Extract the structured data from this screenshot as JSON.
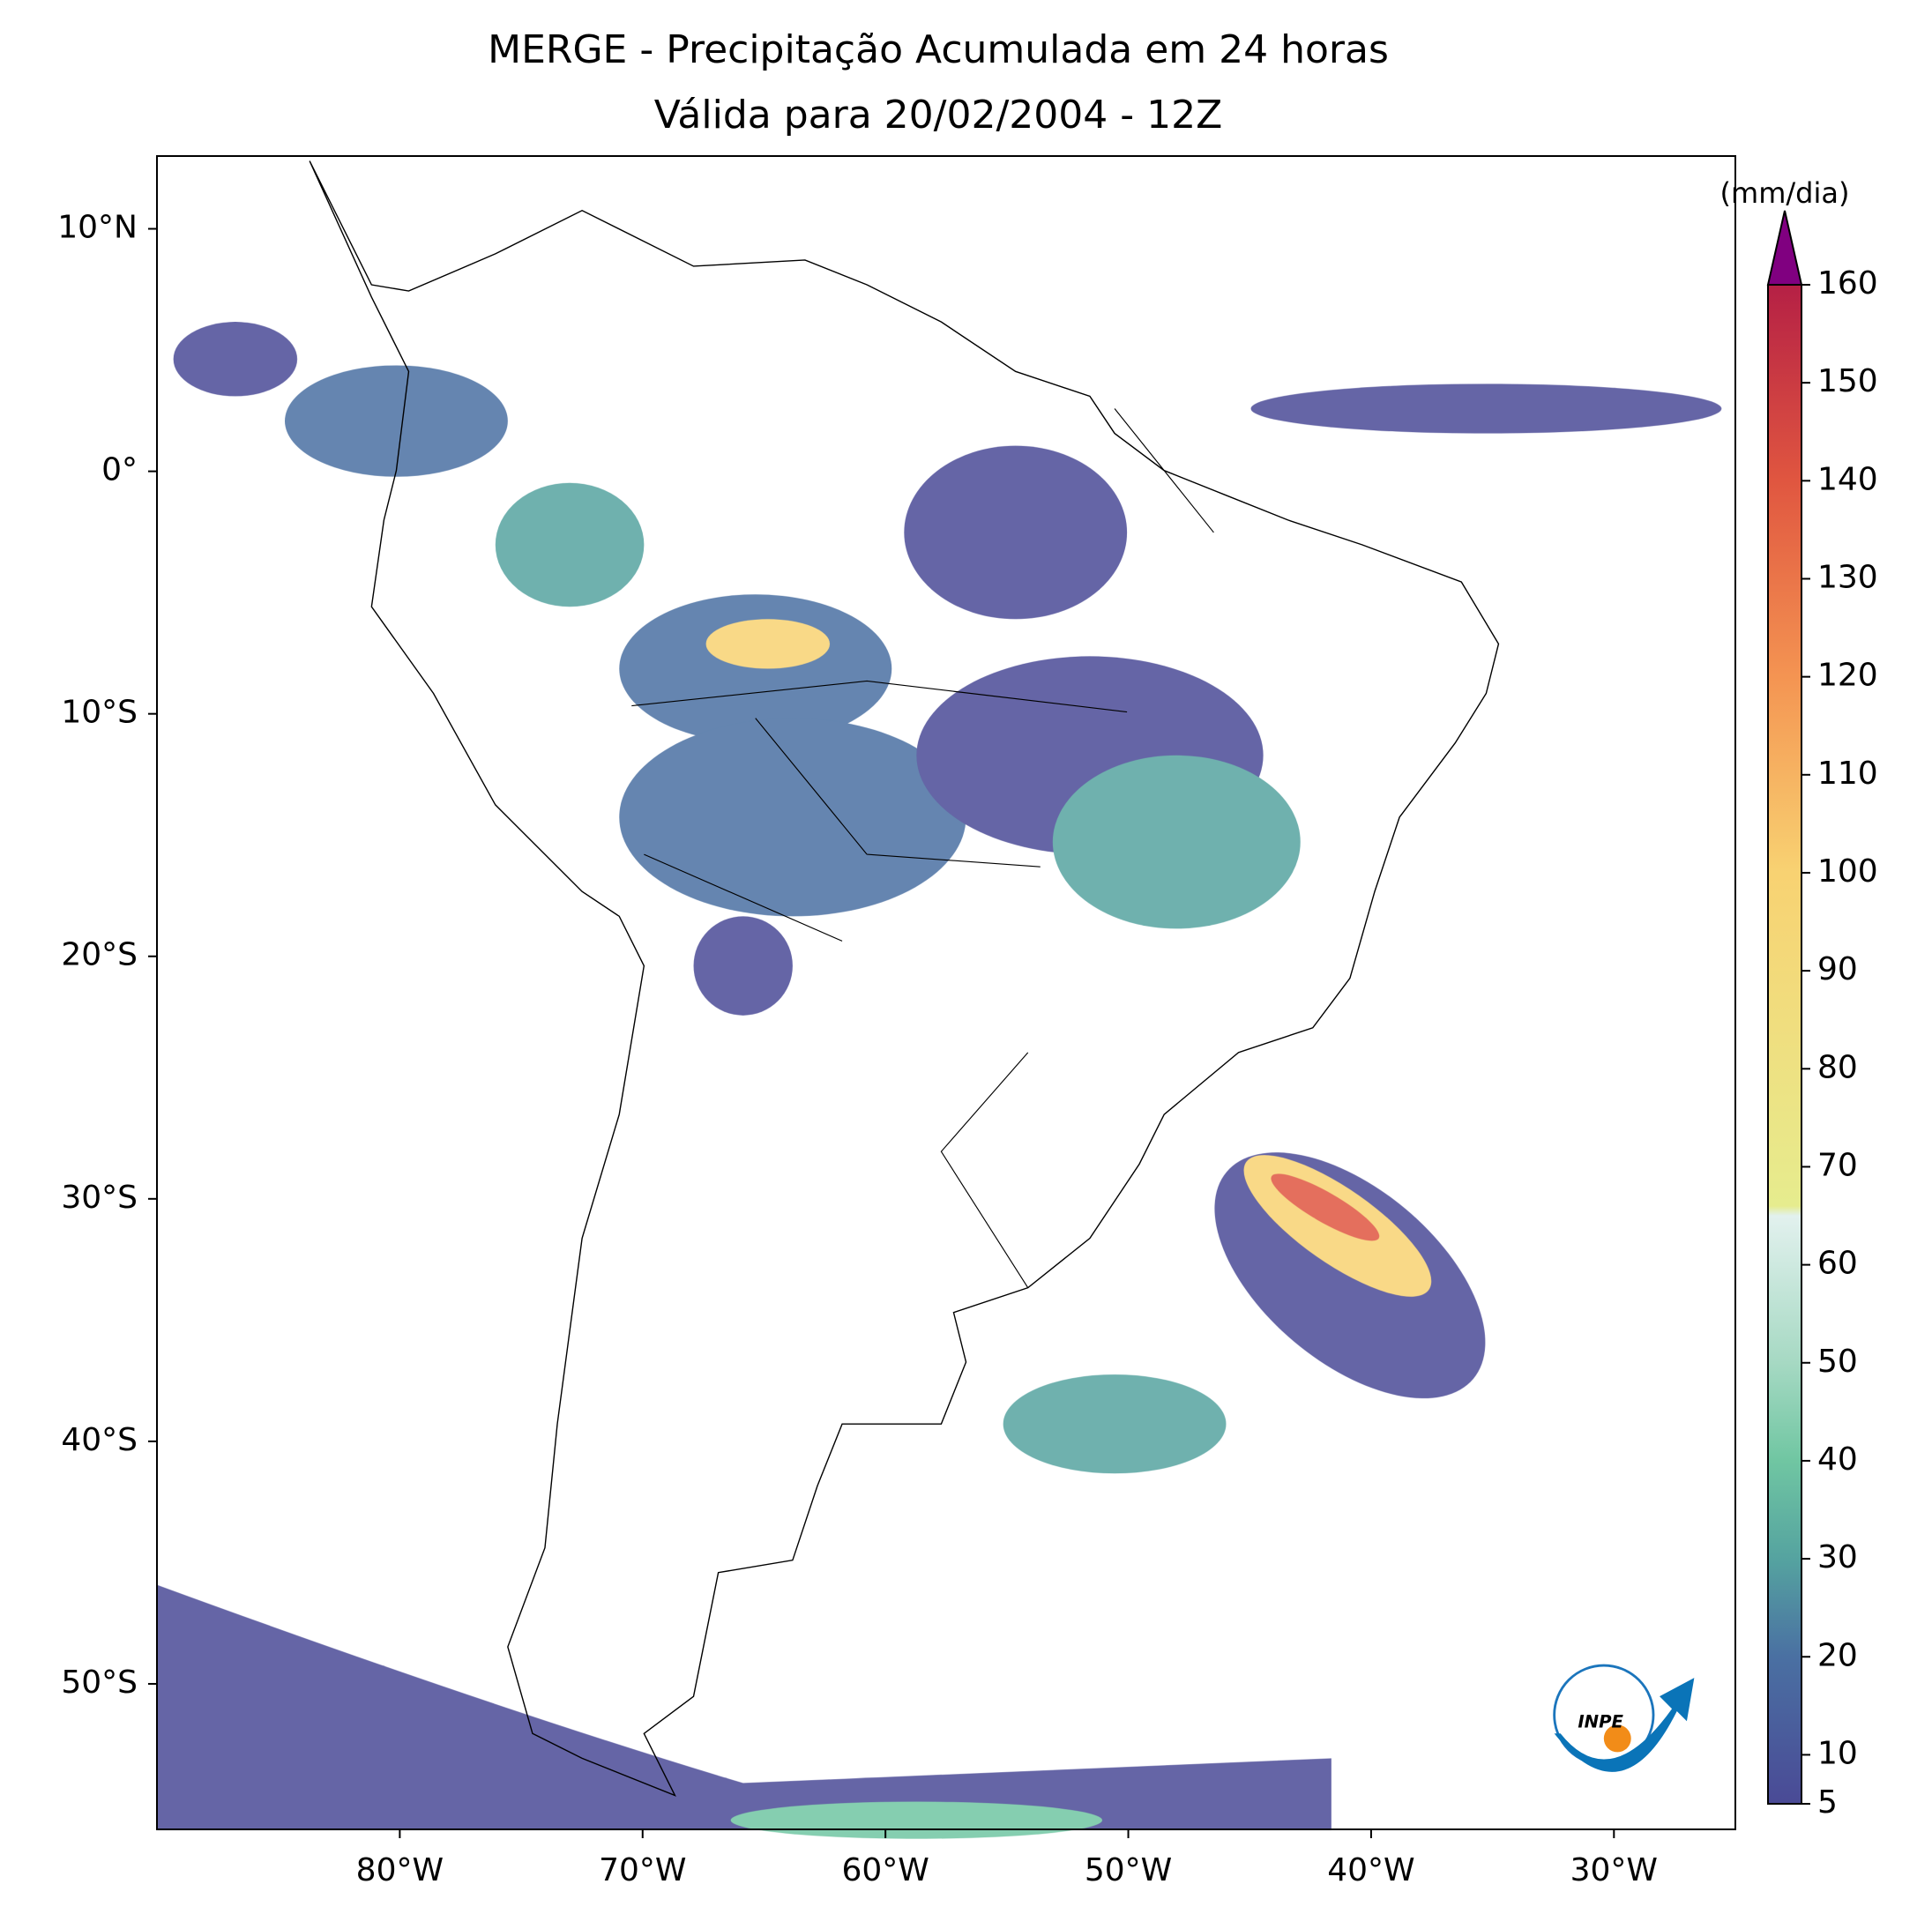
{
  "chart_data": {
    "type": "map",
    "title": "MERGE - Precipitação Acumulada em 24 horas",
    "subtitle": "Válida para 20/02/2004 - 12Z",
    "xlim": [
      -90,
      -25
    ],
    "ylim": [
      -56,
      13
    ],
    "xticks": [
      {
        "value": -80,
        "label": "80°W"
      },
      {
        "value": -70,
        "label": "70°W"
      },
      {
        "value": -60,
        "label": "60°W"
      },
      {
        "value": -50,
        "label": "50°W"
      },
      {
        "value": -40,
        "label": "40°W"
      },
      {
        "value": -30,
        "label": "30°W"
      }
    ],
    "yticks": [
      {
        "value": 10,
        "label": "10°N"
      },
      {
        "value": 0,
        "label": "0°"
      },
      {
        "value": -10,
        "label": "10°S"
      },
      {
        "value": -20,
        "label": "20°S"
      },
      {
        "value": -30,
        "label": "30°S"
      },
      {
        "value": -40,
        "label": "40°S"
      },
      {
        "value": -50,
        "label": "50°S"
      }
    ],
    "colorbar": {
      "label": "(mm/dia)",
      "lim": [
        5,
        160
      ],
      "ticks": [
        5,
        10,
        20,
        30,
        40,
        50,
        60,
        70,
        80,
        90,
        100,
        110,
        120,
        130,
        140,
        150,
        160
      ],
      "color_stops": [
        {
          "value": 5,
          "color": "#4a4a96"
        },
        {
          "value": 20,
          "color": "#4a70a2"
        },
        {
          "value": 30,
          "color": "#55a3a0"
        },
        {
          "value": 40,
          "color": "#70c6a2"
        },
        {
          "value": 50,
          "color": "#a6d9c3"
        },
        {
          "value": 65,
          "color": "#e2f1ee"
        },
        {
          "value": 66,
          "color": "#e6ec8e"
        },
        {
          "value": 100,
          "color": "#f8d272"
        },
        {
          "value": 120,
          "color": "#f49452"
        },
        {
          "value": 140,
          "color": "#e05640"
        },
        {
          "value": 160,
          "color": "#b52045"
        }
      ],
      "extend_color": "#800080"
    }
  },
  "logo": "INPE"
}
